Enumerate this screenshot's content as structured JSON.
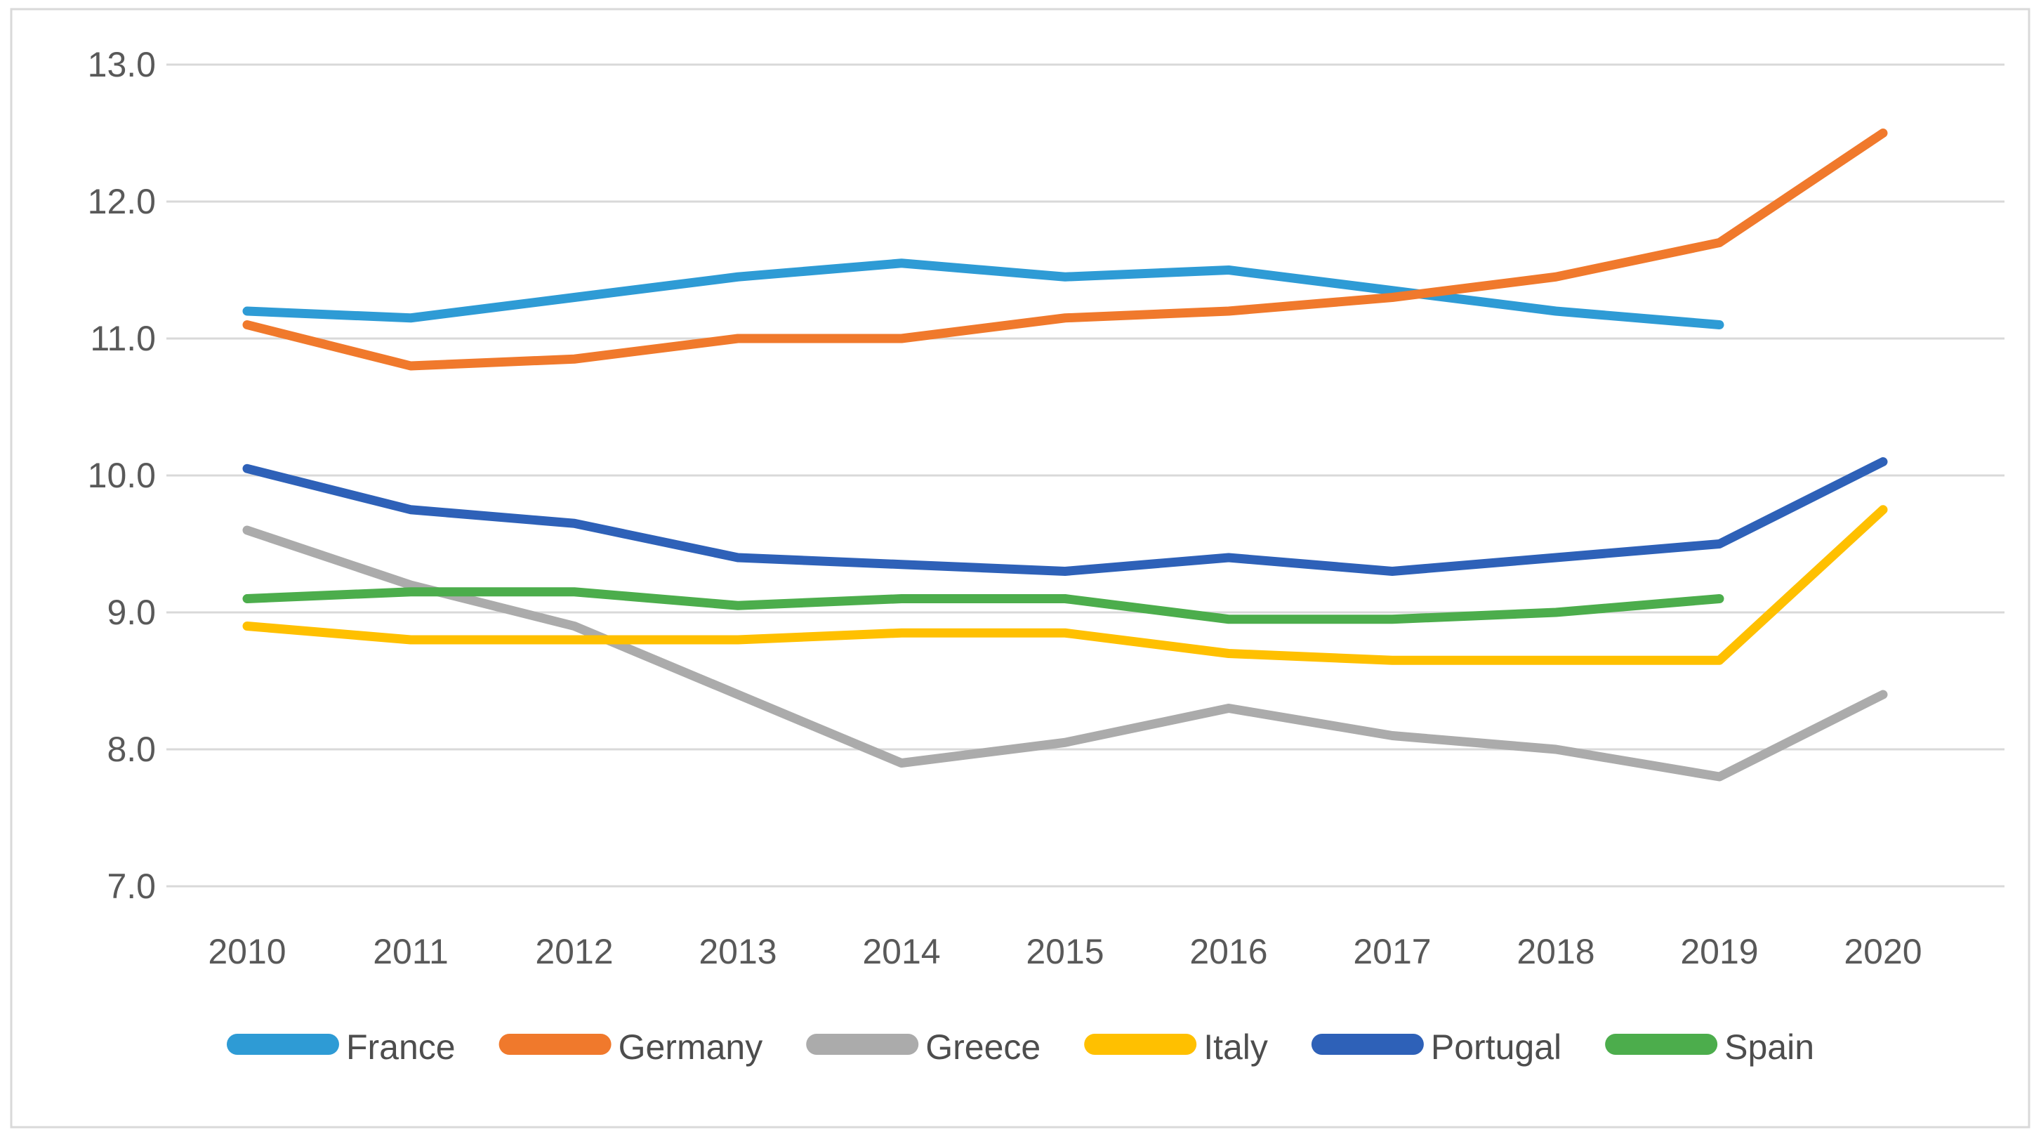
{
  "chart_data": {
    "type": "line",
    "title": "",
    "xlabel": "",
    "ylabel": "",
    "x_labels": [
      "2010",
      "2011",
      "2012",
      "2013",
      "2014",
      "2015",
      "2016",
      "2017",
      "2018",
      "2019",
      "2020"
    ],
    "y_tick_labels": [
      "13.0",
      "12.0",
      "11.0",
      "10.0",
      "9.0",
      "8.0",
      "7.0"
    ],
    "ylim": [
      7.0,
      13.0
    ],
    "y_tick_step": 1.0,
    "grid": true,
    "legend_position": "bottom",
    "series": [
      {
        "name": "France",
        "color": "#2E9BD5",
        "values": [
          11.2,
          11.15,
          11.3,
          11.45,
          11.55,
          11.45,
          11.5,
          11.35,
          11.2,
          11.1,
          null
        ]
      },
      {
        "name": "Germany",
        "color": "#F0792C",
        "values": [
          11.1,
          10.8,
          10.85,
          11.0,
          11.0,
          11.15,
          11.2,
          11.3,
          11.45,
          11.7,
          12.5
        ]
      },
      {
        "name": "Greece",
        "color": "#ABABAB",
        "values": [
          9.6,
          9.2,
          8.9,
          8.4,
          7.9,
          8.05,
          8.3,
          8.1,
          8.0,
          7.8,
          8.4
        ]
      },
      {
        "name": "Italy",
        "color": "#FFC000",
        "values": [
          8.9,
          8.8,
          8.8,
          8.8,
          8.85,
          8.85,
          8.7,
          8.65,
          8.65,
          8.65,
          9.75
        ]
      },
      {
        "name": "Portugal",
        "color": "#2E61B8",
        "values": [
          10.05,
          9.75,
          9.65,
          9.4,
          9.35,
          9.3,
          9.4,
          9.3,
          9.4,
          9.5,
          10.1
        ]
      },
      {
        "name": "Spain",
        "color": "#4CAD4C",
        "values": [
          9.1,
          9.15,
          9.15,
          9.05,
          9.1,
          9.1,
          8.95,
          8.95,
          9.0,
          9.1,
          null
        ]
      }
    ],
    "colors": {
      "background": "#FFFFFF",
      "gridline": "#D9D9D9",
      "chart_border": "#D9D9D9",
      "axis_label": "#595959",
      "legend_label": "#4D4D4D"
    }
  }
}
